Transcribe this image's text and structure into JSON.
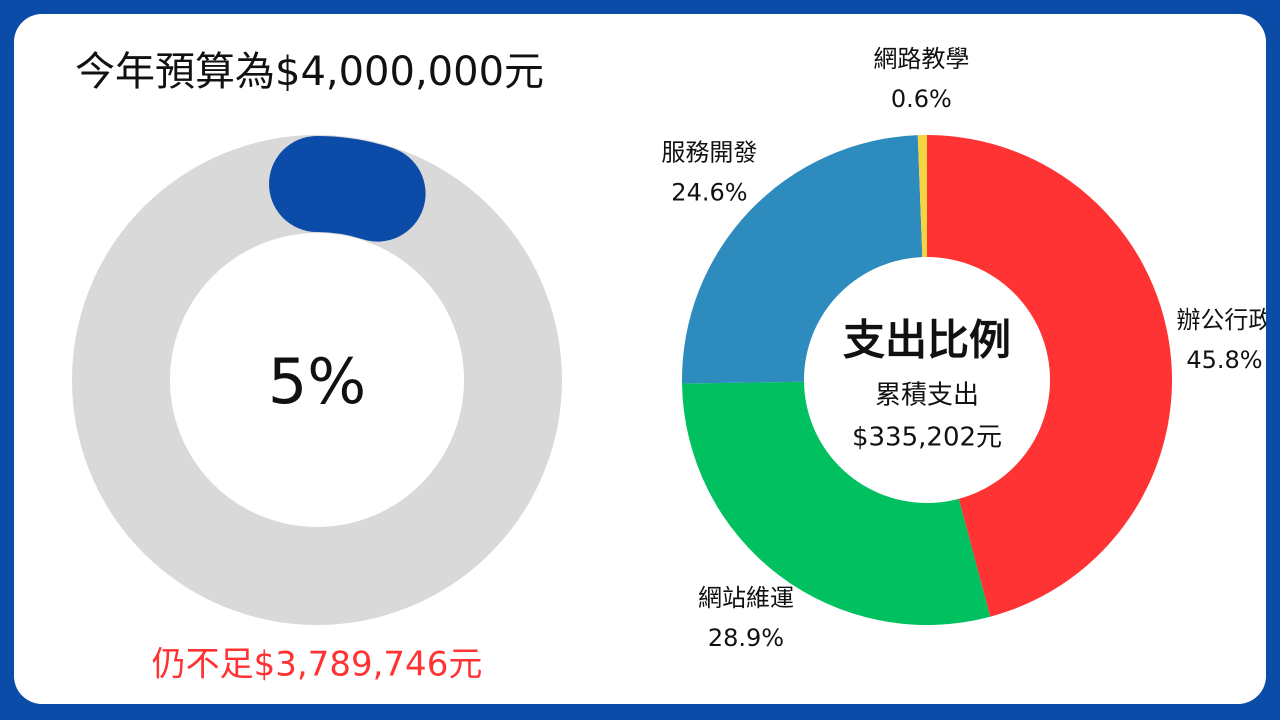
{
  "chart_data": [
    {
      "type": "progress",
      "title": "今年預算為$4,000,000元",
      "value": 5,
      "value_label": "5%",
      "footnote": "仍不足$3,789,746元",
      "track_color": "#d9d9d9",
      "color": "#0b4ca8",
      "footnote_color": "#ff3333"
    },
    {
      "type": "pie",
      "title": "支出比例",
      "subtitle": "累積支出",
      "total_label": "$335,202元",
      "categories": [
        "辦公行政",
        "網站維運",
        "服務開發",
        "網路教學"
      ],
      "values": [
        45.8,
        28.9,
        24.6,
        0.6
      ],
      "value_labels": [
        "45.8%",
        "28.9%",
        "24.6%",
        "0.6%"
      ],
      "colors": [
        "#ff3333",
        "#00c060",
        "#2e8bbd",
        "#f5d442"
      ]
    }
  ]
}
